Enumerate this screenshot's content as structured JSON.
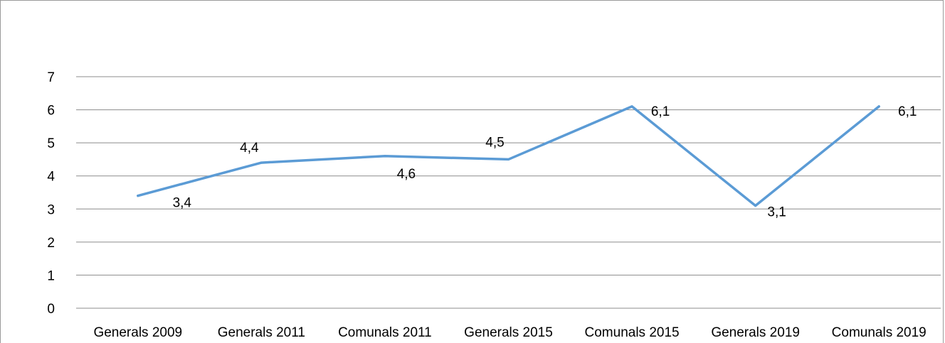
{
  "chart_data": {
    "type": "line",
    "categories": [
      "Generals 2009",
      "Generals 2011",
      "Comunals 2011",
      "Generals 2015",
      "Comunals 2015",
      "Generals 2019",
      "Comunals 2019"
    ],
    "series": [
      {
        "values": [
          3.4,
          4.4,
          4.6,
          4.5,
          6.1,
          3.1,
          6.1
        ]
      }
    ],
    "data_labels": [
      "3,4",
      "4,4",
      "4,6",
      "4,5",
      "6,1",
      "3,1",
      "6,1"
    ],
    "y_ticks": [
      "0",
      "1",
      "2",
      "3",
      "4",
      "5",
      "6",
      "7"
    ],
    "ylim": [
      0,
      7
    ],
    "grid": true,
    "line_color": "#5b9bd5",
    "title": "",
    "xlabel": "",
    "ylabel": ""
  }
}
